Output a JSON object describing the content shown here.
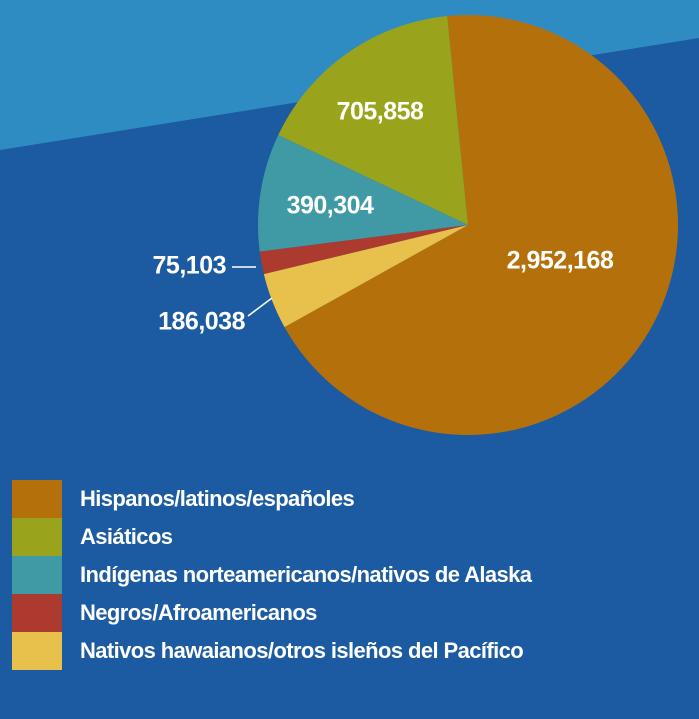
{
  "chart_data": {
    "type": "pie",
    "categories": [
      "Hispanos/latinos/españoles",
      "Asiáticos",
      "Indígenas norteamericanos/nativos de Alaska",
      "Negros/Afroamericanos",
      "Nativos hawaianos/otros isleños del Pacífico"
    ],
    "values": [
      2952168,
      705858,
      390304,
      75103,
      186038
    ],
    "value_labels": [
      "2,952,168",
      "705,858",
      "390,304",
      "75,103",
      "186,038"
    ],
    "colors": [
      "#b4710b",
      "#9aa31c",
      "#3f9aa5",
      "#ad3a2f",
      "#e7c14b"
    ]
  }
}
